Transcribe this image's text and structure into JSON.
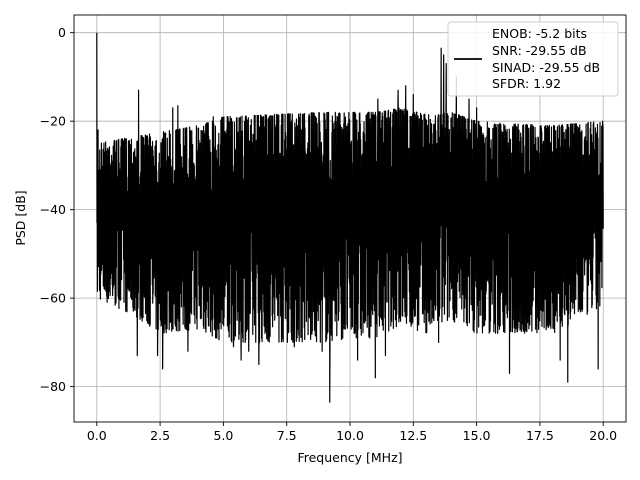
{
  "chart_data": {
    "type": "line",
    "title": "",
    "xlabel": "Frequency [MHz]",
    "ylabel": "PSD [dB]",
    "xlim": [
      -0.9,
      20.9
    ],
    "ylim": [
      -88,
      4
    ],
    "xticks": [
      0.0,
      2.5,
      5.0,
      7.5,
      10.0,
      12.5,
      15.0,
      17.5,
      20.0
    ],
    "xtick_labels": [
      "0.0",
      "2.5",
      "5.0",
      "7.5",
      "10.0",
      "12.5",
      "15.0",
      "17.5",
      "20.0"
    ],
    "yticks": [
      0,
      -20,
      -40,
      -60,
      -80
    ],
    "ytick_labels": [
      "0",
      "−20",
      "−40",
      "−60",
      "−80"
    ],
    "grid": true,
    "legend_position": "top-right",
    "series": [
      {
        "name": "ENOB: -5.2 bits\nSNR: -29.55 dB\nSINAD: -29.55 dB\nSFDR: 1.92",
        "legend_lines": [
          "ENOB: -5.2 bits",
          "SNR: -29.55 dB",
          "SINAD: -29.55 dB",
          "SFDR: 1.92"
        ],
        "color": "#000000",
        "x_range": [
          0,
          20
        ],
        "upper_envelope": [
          [
            0,
            -25
          ],
          [
            0.5,
            -24.5
          ],
          [
            1.0,
            -24
          ],
          [
            1.5,
            -23.5
          ],
          [
            2.5,
            -22.5
          ],
          [
            4.0,
            -21
          ],
          [
            5.0,
            -19
          ],
          [
            7.0,
            -18.5
          ],
          [
            9.0,
            -18
          ],
          [
            11.0,
            -18
          ],
          [
            12.0,
            -17
          ],
          [
            13.0,
            -18.5
          ],
          [
            14.0,
            -18
          ],
          [
            15.0,
            -20
          ],
          [
            16.0,
            -20.5
          ],
          [
            18.0,
            -21
          ],
          [
            20.0,
            -20
          ]
        ],
        "lower_envelope": [
          [
            0,
            -60
          ],
          [
            1.5,
            -64
          ],
          [
            2.5,
            -68
          ],
          [
            4.0,
            -67
          ],
          [
            5.0,
            -70
          ],
          [
            7.5,
            -70
          ],
          [
            9.0,
            -70
          ],
          [
            10.0,
            -69
          ],
          [
            11.0,
            -69
          ],
          [
            12.0,
            -66
          ],
          [
            13.0,
            -68
          ],
          [
            14.0,
            -65
          ],
          [
            15.0,
            -68
          ],
          [
            17.0,
            -68
          ],
          [
            18.0,
            -68
          ],
          [
            20.0,
            -62
          ]
        ],
        "peaks": [
          [
            0.0,
            0
          ],
          [
            0.05,
            -22
          ],
          [
            1.65,
            -13
          ],
          [
            3.0,
            -17
          ],
          [
            3.2,
            -16.5
          ],
          [
            4.6,
            -19
          ],
          [
            10.3,
            -18
          ],
          [
            11.1,
            -15
          ],
          [
            11.9,
            -13
          ],
          [
            12.2,
            -12
          ],
          [
            12.5,
            -14
          ],
          [
            13.5,
            -8
          ],
          [
            13.6,
            -3.5
          ],
          [
            13.7,
            -5
          ],
          [
            13.8,
            -7
          ],
          [
            14.2,
            -10
          ],
          [
            14.7,
            -15
          ],
          [
            15.0,
            -17
          ]
        ],
        "dips": [
          [
            1.6,
            -73
          ],
          [
            2.4,
            -73
          ],
          [
            2.6,
            -76
          ],
          [
            3.6,
            -72
          ],
          [
            5.4,
            -71
          ],
          [
            5.7,
            -74
          ],
          [
            6.0,
            -72
          ],
          [
            6.4,
            -75
          ],
          [
            7.8,
            -71
          ],
          [
            8.9,
            -72
          ],
          [
            9.2,
            -83.5
          ],
          [
            10.3,
            -74
          ],
          [
            11.0,
            -78
          ],
          [
            11.4,
            -73
          ],
          [
            13.5,
            -70
          ],
          [
            16.3,
            -77
          ],
          [
            18.3,
            -74
          ],
          [
            18.6,
            -79
          ],
          [
            19.8,
            -76
          ]
        ]
      }
    ]
  }
}
